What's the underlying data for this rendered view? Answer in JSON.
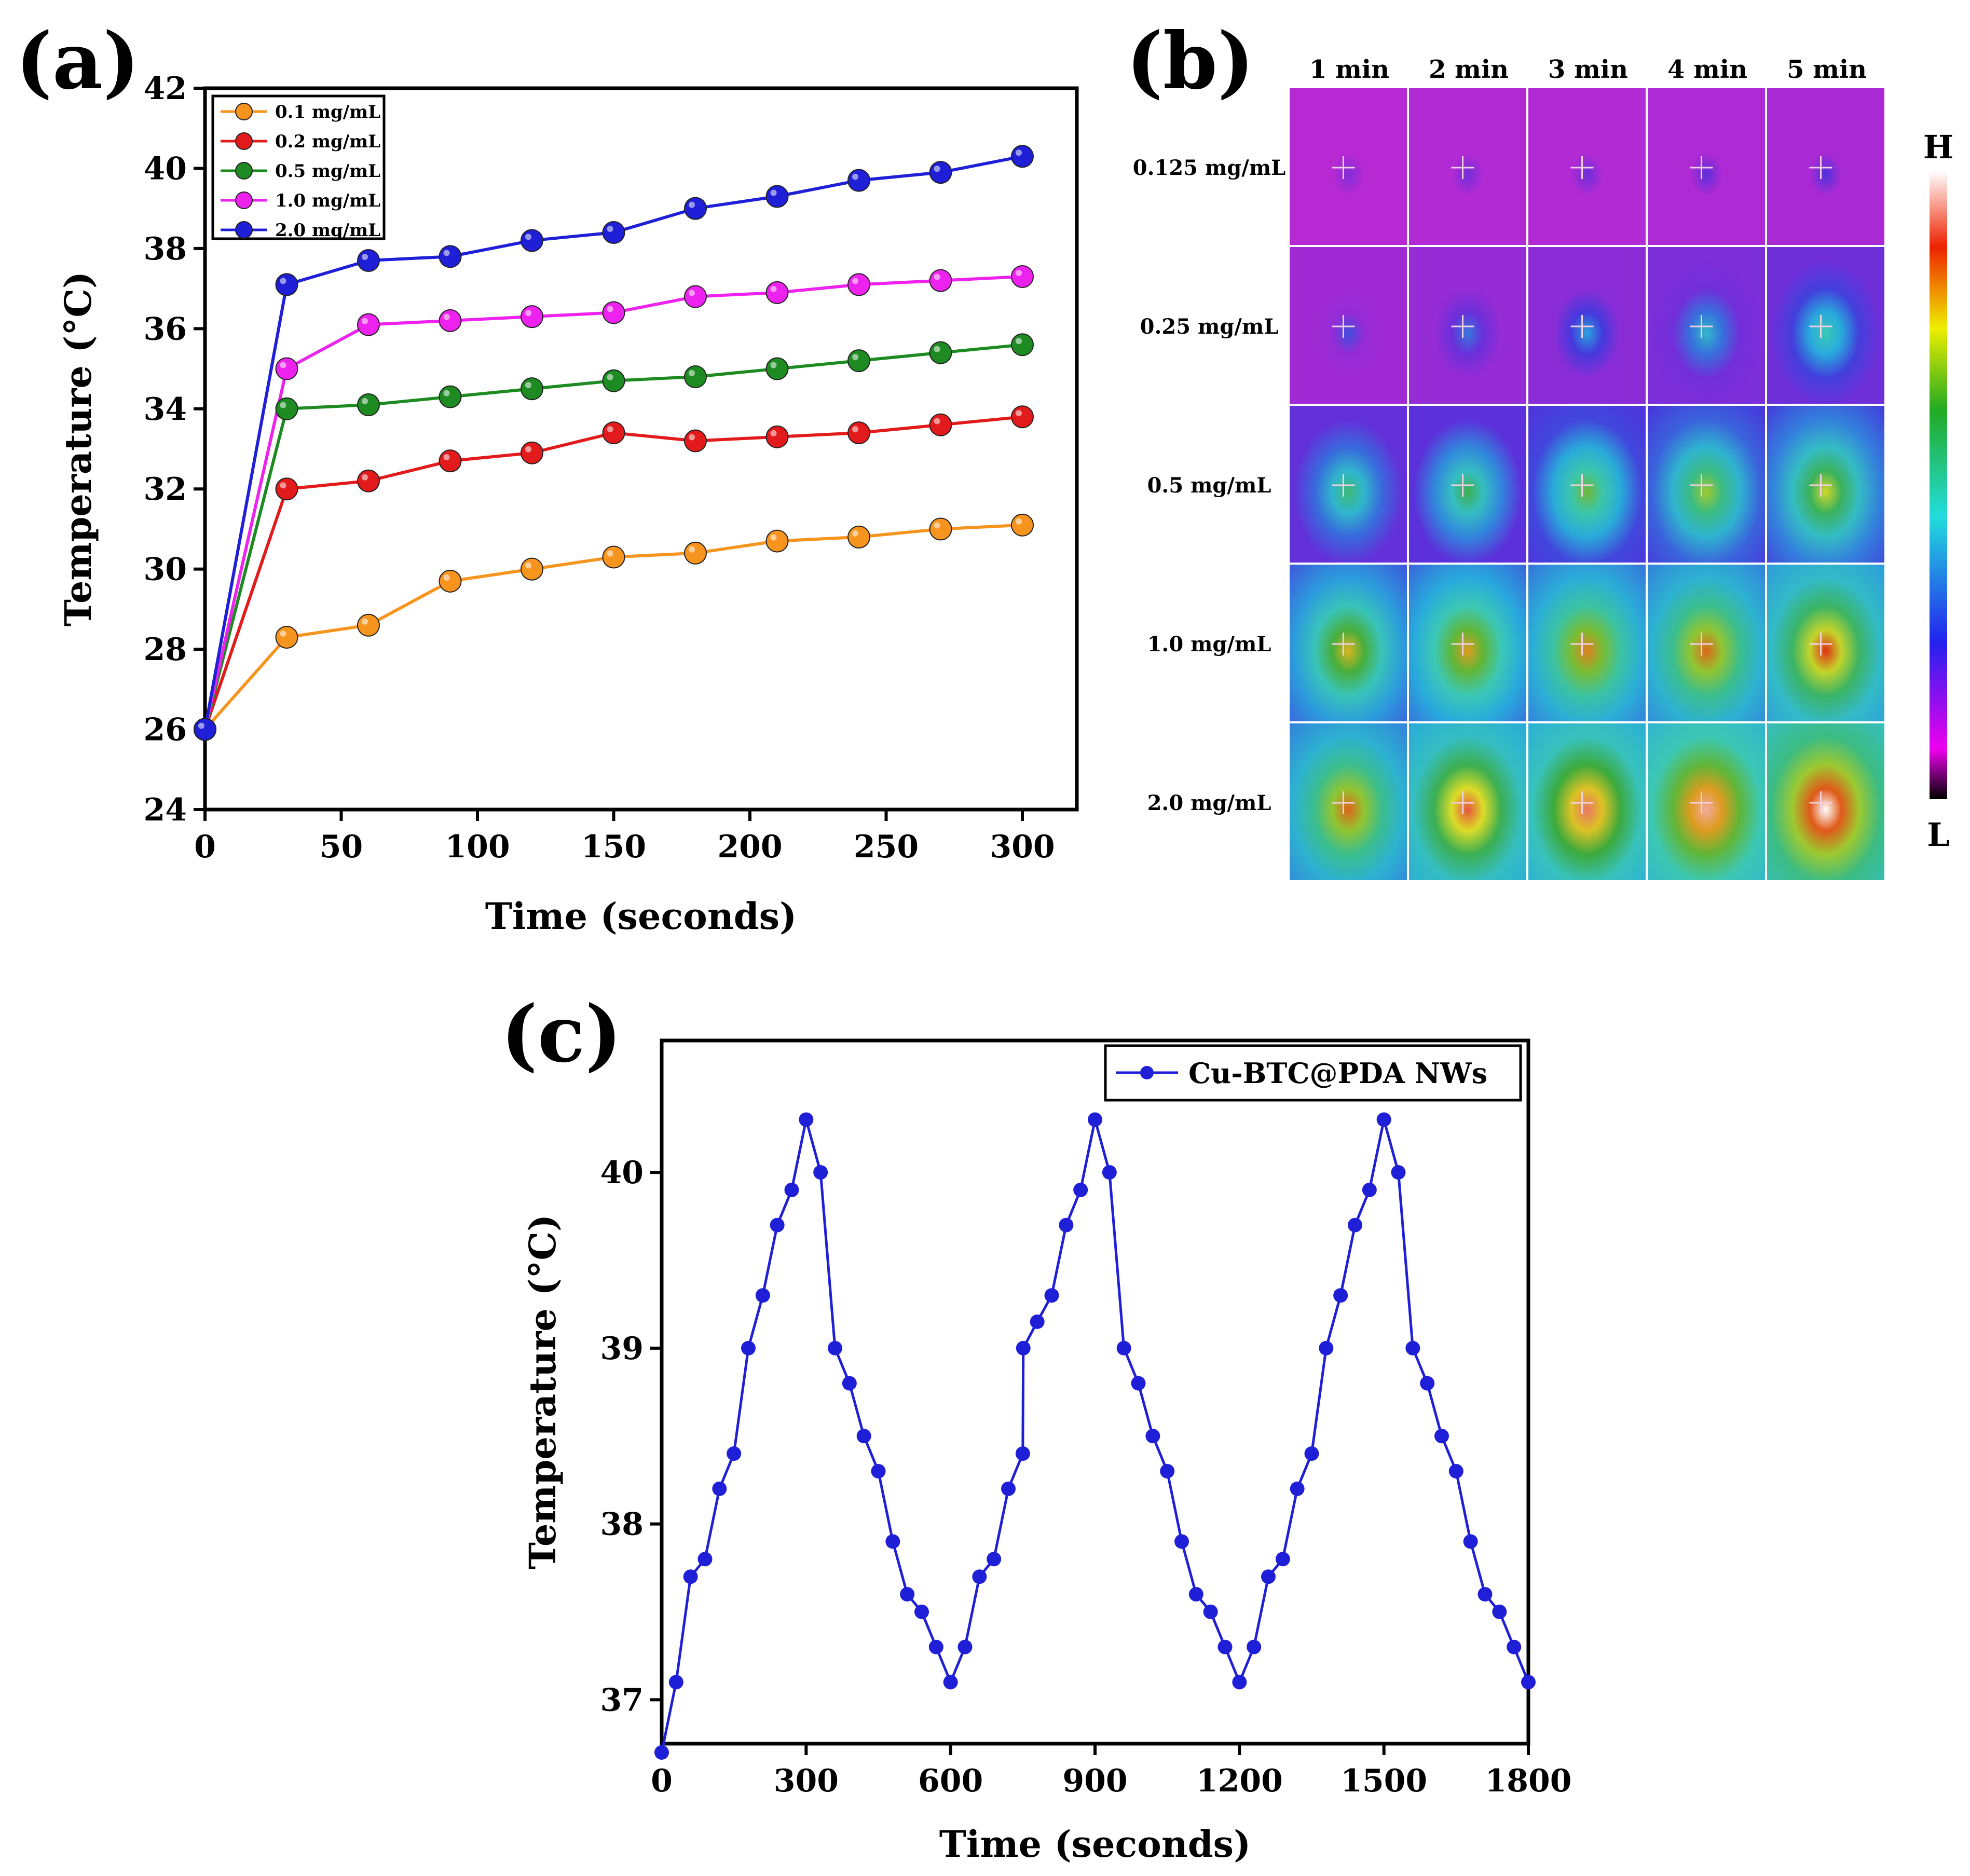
{
  "chart_data": [
    {
      "id": "a",
      "panel_label": "(a)",
      "type": "line",
      "xlabel": "Time (seconds)",
      "ylabel": "Temperature (°C)",
      "xlim": [
        0,
        320
      ],
      "ylim": [
        24,
        42
      ],
      "xticks": [
        0,
        50,
        100,
        150,
        200,
        250,
        300
      ],
      "yticks": [
        24,
        26,
        28,
        30,
        32,
        34,
        36,
        38,
        40,
        42
      ],
      "legend_position": "top-left",
      "x": [
        0,
        30,
        60,
        90,
        120,
        150,
        180,
        210,
        240,
        270,
        300
      ],
      "series": [
        {
          "name": "0.1 mg/mL",
          "color": "#f7941d",
          "values": [
            26,
            28.3,
            28.6,
            29.7,
            30.0,
            30.3,
            30.4,
            30.7,
            30.8,
            31.0,
            31.1
          ]
        },
        {
          "name": "0.2 mg/mL",
          "color": "#e31a1c",
          "values": [
            26,
            32.0,
            32.2,
            32.7,
            32.9,
            33.4,
            33.2,
            33.3,
            33.4,
            33.6,
            33.8
          ]
        },
        {
          "name": "0.5 mg/mL",
          "color": "#1e8b22",
          "values": [
            26,
            34.0,
            34.1,
            34.3,
            34.5,
            34.7,
            34.8,
            35.0,
            35.2,
            35.4,
            35.6
          ]
        },
        {
          "name": "1.0 mg/mL",
          "color": "#ee22ee",
          "values": [
            26,
            35.0,
            36.1,
            36.2,
            36.3,
            36.4,
            36.8,
            36.9,
            37.1,
            37.2,
            37.3
          ]
        },
        {
          "name": "2.0 mg/mL",
          "color": "#1f1fd8",
          "values": [
            26,
            37.1,
            37.7,
            37.8,
            38.2,
            38.4,
            39.0,
            39.3,
            39.7,
            39.9,
            40.3
          ]
        }
      ]
    },
    {
      "id": "c",
      "panel_label": "(c)",
      "type": "line",
      "xlabel": "Time (seconds)",
      "ylabel": "Temperature (°C)",
      "xlim": [
        0,
        1800
      ],
      "ylim": [
        36.75,
        40.75
      ],
      "xticks": [
        0,
        300,
        600,
        900,
        1200,
        1500,
        1800
      ],
      "yticks": [
        37,
        38,
        39,
        40
      ],
      "legend_position": "top-right",
      "series": [
        {
          "name": "Cu-BTC@PDA NWs",
          "color": "#1f1fd8",
          "x": [
            0,
            30,
            60,
            90,
            120,
            150,
            180,
            210,
            240,
            270,
            300,
            330,
            360,
            390,
            420,
            450,
            480,
            510,
            540,
            570,
            600,
            630,
            660,
            690,
            720,
            750,
            751,
            780,
            810,
            840,
            870,
            900,
            930,
            960,
            990,
            1020,
            1050,
            1080,
            1110,
            1140,
            1170,
            1200,
            1230,
            1260,
            1290,
            1320,
            1350,
            1380,
            1410,
            1440,
            1470,
            1500,
            1530,
            1560,
            1590,
            1620,
            1650,
            1680,
            1710,
            1740,
            1770,
            1800
          ],
          "values": [
            36.7,
            37.1,
            37.7,
            37.8,
            38.2,
            38.4,
            39.0,
            39.3,
            39.7,
            39.9,
            40.3,
            40.0,
            39.0,
            38.8,
            38.5,
            38.3,
            37.9,
            37.6,
            37.5,
            37.3,
            37.1,
            37.3,
            37.7,
            37.8,
            38.2,
            38.4,
            39.0,
            39.15,
            39.3,
            39.7,
            39.9,
            40.3,
            40.0,
            39.0,
            38.8,
            38.5,
            38.3,
            37.9,
            37.6,
            37.5,
            37.3,
            37.1,
            37.3,
            37.7,
            37.8,
            38.2,
            38.4,
            39.0,
            39.3,
            39.7,
            39.9,
            40.3,
            40.0,
            39.0,
            38.8,
            38.5,
            38.3,
            37.9,
            37.6,
            37.5,
            37.3,
            37.1
          ]
        }
      ]
    }
  ],
  "panel_b": {
    "panel_label": "(b)",
    "columns": [
      "1 min",
      "2 min",
      "3 min",
      "4 min",
      "5 min"
    ],
    "rows": [
      "0.125 mg/mL",
      "0.25 mg/mL",
      "0.5 mg/mL",
      "1.0 mg/mL",
      "2.0 mg/mL"
    ],
    "heat_levels": [
      [
        0.1,
        0.12,
        0.13,
        0.15,
        0.17
      ],
      [
        0.22,
        0.28,
        0.34,
        0.42,
        0.5
      ],
      [
        0.56,
        0.6,
        0.66,
        0.7,
        0.74
      ],
      [
        0.78,
        0.8,
        0.82,
        0.84,
        0.88
      ],
      [
        0.84,
        0.9,
        0.92,
        0.95,
        1.0
      ]
    ],
    "colorbar_high": "H",
    "colorbar_low": "L"
  }
}
